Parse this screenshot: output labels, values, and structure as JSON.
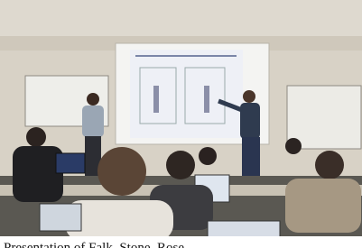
{
  "photo": {
    "caption": "Presentation of Falk, Stone, Rose"
  }
}
